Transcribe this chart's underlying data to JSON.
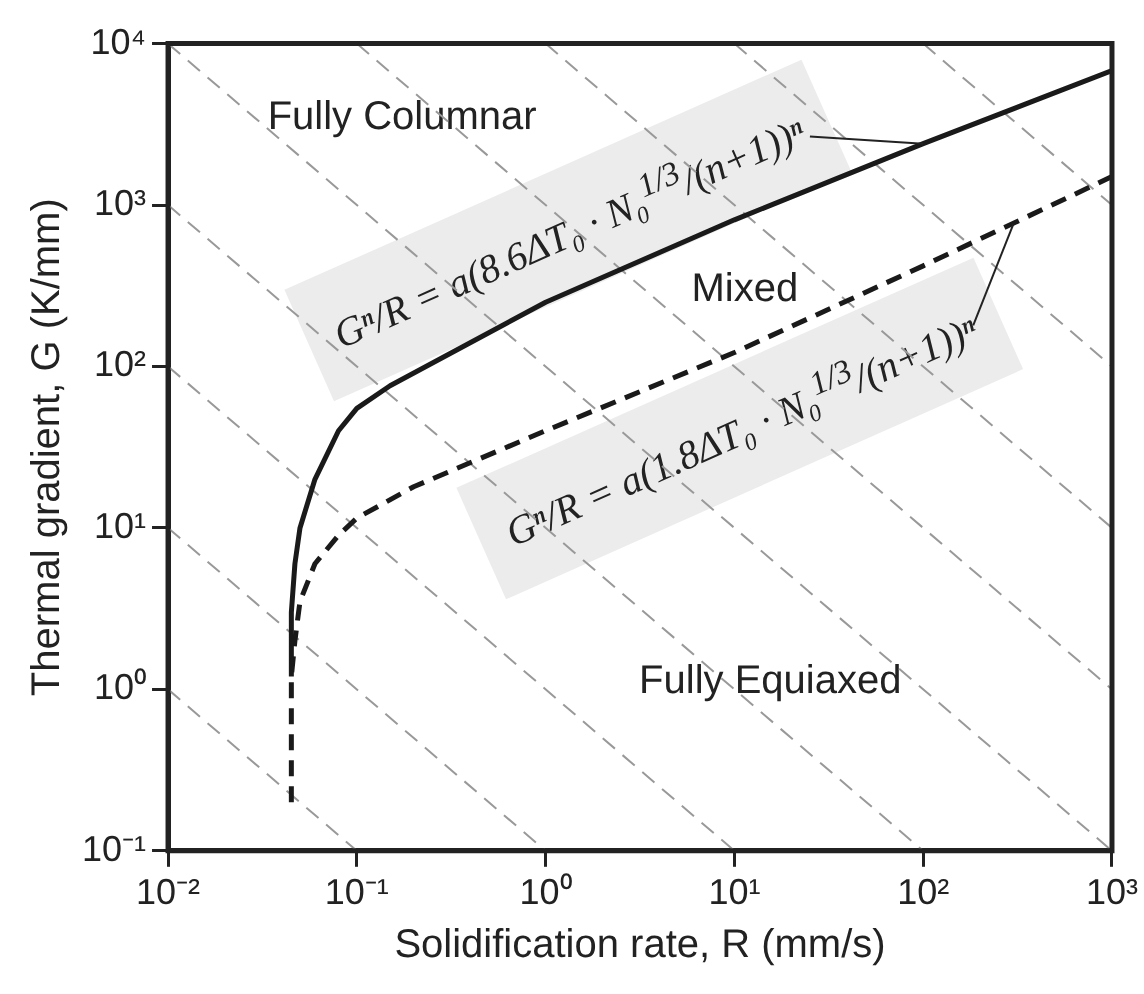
{
  "chart_data": {
    "type": "line",
    "xlabel": "Solidification rate, R (mm/s)",
    "ylabel": "Thermal gradient, G (K/mm)",
    "log": "xy",
    "grid": false,
    "legend": false,
    "marker": "none",
    "xlim": [
      0.01,
      1000
    ],
    "ylim": [
      0.1,
      10000
    ],
    "xticks": [
      {
        "value": 0.01,
        "label": "10⁻²"
      },
      {
        "value": 0.1,
        "label": "10⁻¹"
      },
      {
        "value": 1,
        "label": "10⁰"
      },
      {
        "value": 10,
        "label": "10¹"
      },
      {
        "value": 100,
        "label": "10²"
      },
      {
        "value": 1000,
        "label": "10³"
      }
    ],
    "yticks": [
      {
        "value": 0.1,
        "label": "10⁻¹"
      },
      {
        "value": 1,
        "label": "10⁰"
      },
      {
        "value": 10,
        "label": "10¹"
      },
      {
        "value": 100,
        "label": "10²"
      },
      {
        "value": 1000,
        "label": "10³"
      },
      {
        "value": 10000,
        "label": "10⁴"
      }
    ],
    "series": [
      {
        "color": "#1a1a1a",
        "line_style": "solid",
        "x": [
          0.045,
          0.045,
          0.047,
          0.05,
          0.06,
          0.08,
          0.1,
          0.15,
          1,
          10,
          100,
          1000
        ],
        "values": [
          1.2,
          3,
          6,
          10,
          20,
          40,
          55,
          76,
          250,
          810,
          2400,
          6800
        ]
      },
      {
        "color": "#1a1a1a",
        "line_style": "dashed",
        "x": [
          0.045,
          0.045,
          0.047,
          0.05,
          0.06,
          0.08,
          0.1,
          0.2,
          1,
          10,
          100,
          1000
        ],
        "values": [
          0.2,
          1.2,
          2,
          3.5,
          6,
          9,
          11.5,
          18,
          40,
          122,
          420,
          1500
        ]
      },
      {
        "color": "#999999",
        "line_style": "dashed",
        "x": [
          0.01,
          0.1
        ],
        "values": [
          1,
          0.1
        ]
      },
      {
        "color": "#999999",
        "line_style": "dashed",
        "x": [
          0.01,
          1
        ],
        "values": [
          10,
          0.1
        ]
      },
      {
        "color": "#999999",
        "line_style": "dashed",
        "x": [
          0.01,
          10
        ],
        "values": [
          100,
          0.1
        ]
      },
      {
        "color": "#999999",
        "line_style": "dashed",
        "x": [
          0.01,
          100
        ],
        "values": [
          1000,
          0.1
        ]
      },
      {
        "color": "#999999",
        "line_style": "dashed",
        "x": [
          0.01,
          1000
        ],
        "values": [
          10000,
          0.1
        ]
      },
      {
        "color": "#999999",
        "line_style": "dashed",
        "x": [
          0.1,
          1000
        ],
        "values": [
          10000,
          1
        ]
      },
      {
        "color": "#999999",
        "line_style": "dashed",
        "x": [
          1,
          1000
        ],
        "values": [
          10000,
          10
        ]
      },
      {
        "color": "#999999",
        "line_style": "dashed",
        "x": [
          10,
          1000
        ],
        "values": [
          10000,
          100
        ]
      },
      {
        "color": "#999999",
        "line_style": "dashed",
        "x": [
          100,
          1000
        ],
        "values": [
          10000,
          1000
        ]
      }
    ],
    "annotations": [
      "Fully Columnar",
      "Mixed",
      "Fully Equiaxed",
      {
        "text": "Gⁿ/R = a(8.6ΔT₀ · N₀$^{1/3}$/(n+1))ⁿ",
        "x": 100,
        "y": 2400
      },
      {
        "text": "Gⁿ/R = a(1.8ΔT₀ · N₀$^{1/3}$/(n+1))ⁿ",
        "x": 300,
        "y": 760
      }
    ]
  }
}
